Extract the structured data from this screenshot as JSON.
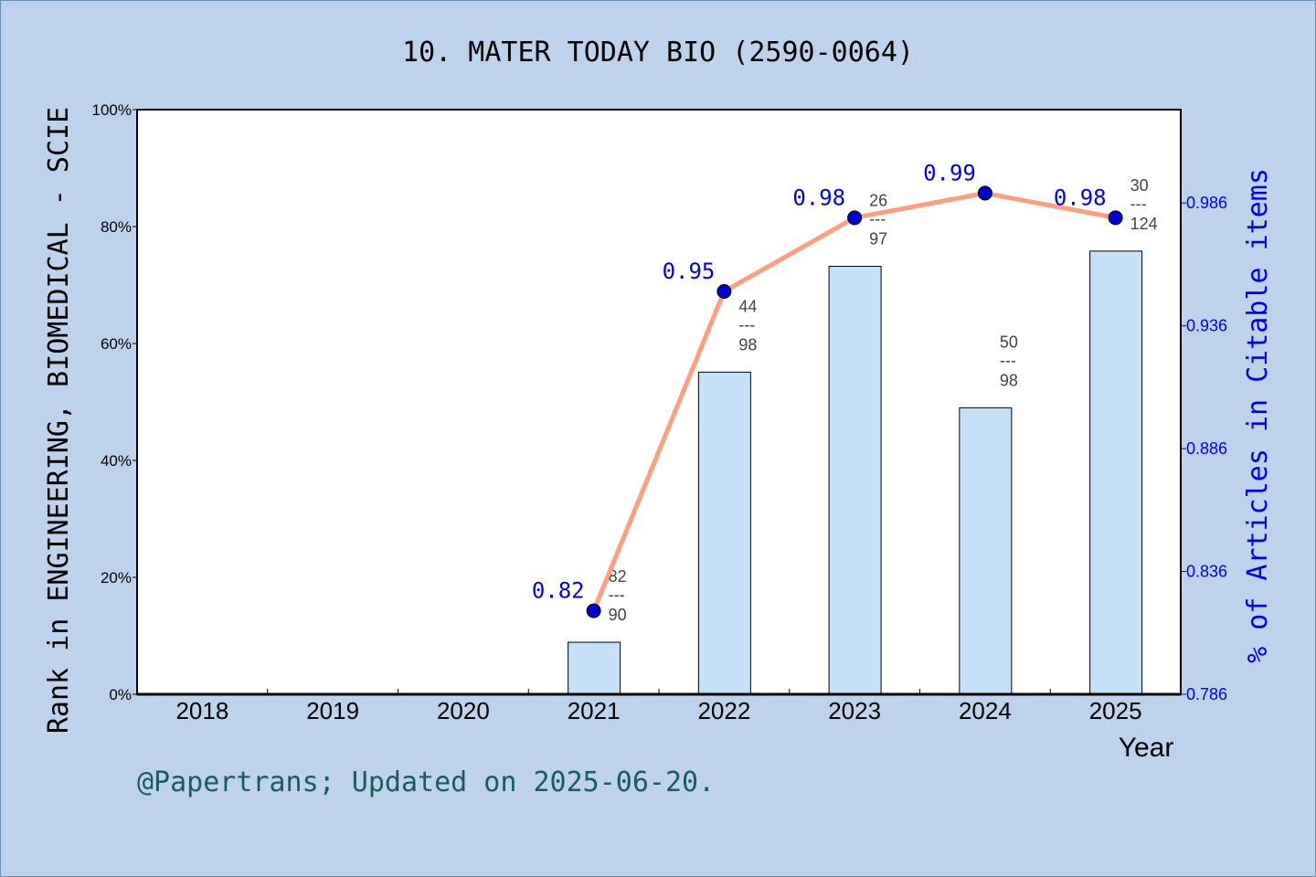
{
  "chart_data": {
    "type": "bar+line",
    "title": "10. MATER TODAY BIO (2590-0064)",
    "xlabel": "Year",
    "ylabel": "Rank in ENGINEERING, BIOMEDICAL - SCIE",
    "y2label": "% of Articles in Citable items",
    "categories": [
      "2018",
      "2019",
      "2020",
      "2021",
      "2022",
      "2023",
      "2024",
      "2025"
    ],
    "ylim": [
      0,
      100
    ],
    "yticks": [
      "0%",
      "20%",
      "40%",
      "60%",
      "80%",
      "100%"
    ],
    "y2ticks": [
      "0.786",
      "0.836",
      "0.886",
      "0.936",
      "0.986"
    ],
    "y2lim": [
      0.786,
      1.024
    ],
    "bars": {
      "name": "Rank percentile",
      "color": "#c6e0f7",
      "values": [
        null,
        null,
        null,
        8.9,
        55.1,
        73.2,
        49.0,
        75.8
      ],
      "rank_labels": [
        null,
        null,
        null,
        {
          "rank": "82",
          "total": "90"
        },
        {
          "rank": "44",
          "total": "98"
        },
        {
          "rank": "26",
          "total": "97"
        },
        {
          "rank": "50",
          "total": "98"
        },
        {
          "rank": "30",
          "total": "124"
        }
      ]
    },
    "line": {
      "color": "#ff9f7f",
      "marker_color": "#0000cc",
      "values": [
        null,
        null,
        null,
        0.82,
        0.95,
        0.98,
        0.99,
        0.98
      ],
      "labels": [
        null,
        null,
        null,
        "0.82",
        "0.95",
        "0.98",
        "0.99",
        "0.98"
      ]
    },
    "rank_separator": "---",
    "grid": false
  },
  "footer": {
    "credit": "@Papertrans; Updated on 2025-06-20."
  }
}
